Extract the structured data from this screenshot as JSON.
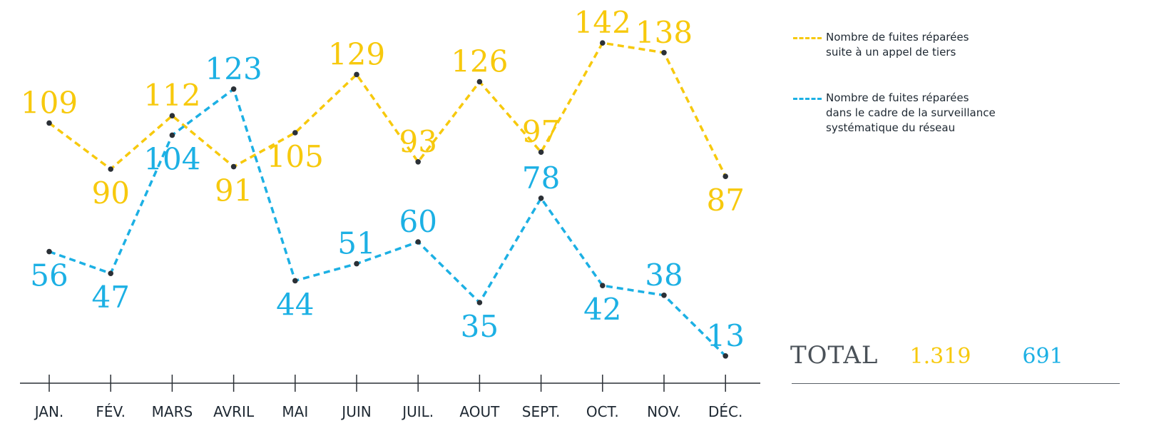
{
  "colors": {
    "series_1": "#f7c90d",
    "series_2": "#1cb0e4",
    "axis": "#2b3036",
    "text": "#1e2832"
  },
  "chart_data": {
    "type": "line",
    "categories": [
      "JAN.",
      "FÉV.",
      "MARS",
      "AVRIL",
      "MAI",
      "JUIN",
      "JUIL.",
      "AOUT",
      "SEPT.",
      "OCT.",
      "NOV.",
      "DÉC."
    ],
    "series": [
      {
        "name": "Nombre de fuites réparées\nsuite à un appel de tiers",
        "values": [
          109,
          90,
          112,
          91,
          105,
          129,
          93,
          126,
          97,
          142,
          138,
          87
        ],
        "label_positions": [
          "above",
          "below",
          "above",
          "below",
          "below",
          "above",
          "above",
          "above",
          "above",
          "above",
          "above",
          "below"
        ]
      },
      {
        "name": "Nombre de fuites réparées\ndans le cadre de la surveillance\nsystématique du réseau",
        "values": [
          56,
          47,
          104,
          123,
          44,
          51,
          60,
          35,
          78,
          42,
          38,
          13
        ],
        "label_positions": [
          "below",
          "below",
          "below",
          "above",
          "below",
          "above",
          "above",
          "below",
          "above",
          "below",
          "above",
          "above"
        ]
      }
    ],
    "line_style": "dashed",
    "grid": false,
    "legend_position": "top-right",
    "ylim": [
      0,
      150
    ]
  },
  "total": {
    "label": "TOTAL",
    "value_1": "1.319",
    "value_2": "691"
  }
}
